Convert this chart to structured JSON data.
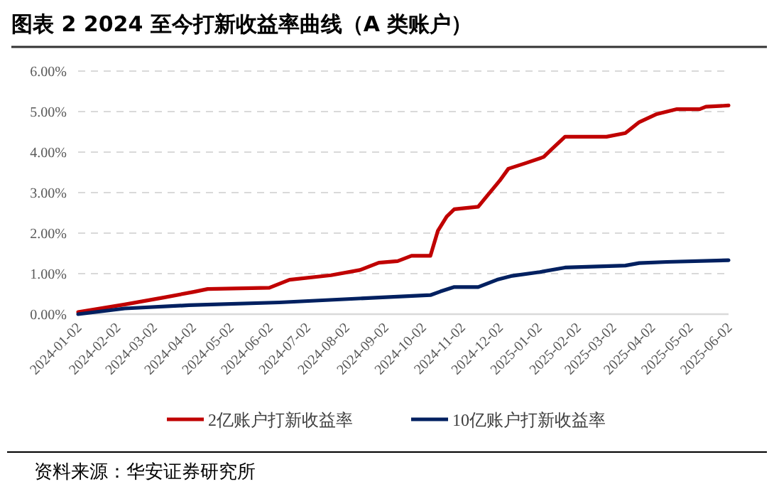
{
  "chart_data": {
    "type": "line",
    "title": "图表 2 2024 至今打新收益率曲线（A 类账户）",
    "annotations": [
      "资料来源：华安证券研究所"
    ],
    "xlim": [
      "2024-01-02",
      "2025-06-02"
    ],
    "xticks": [
      "2024-01-02",
      "2024-02-02",
      "2024-03-02",
      "2024-04-02",
      "2024-05-02",
      "2024-06-02",
      "2024-07-02",
      "2024-08-02",
      "2024-09-02",
      "2024-10-02",
      "2024-11-02",
      "2024-12-02",
      "2025-01-02",
      "2025-02-02",
      "2025-03-02",
      "2025-04-02",
      "2025-05-02",
      "2025-06-02"
    ],
    "ylim": [
      0,
      6
    ],
    "yticks": [
      {
        "value": 0,
        "label": "0.00%"
      },
      {
        "value": 1,
        "label": "1.00%"
      },
      {
        "value": 2,
        "label": "2.00%"
      },
      {
        "value": 3,
        "label": "3.00%"
      },
      {
        "value": 4,
        "label": "4.00%"
      },
      {
        "value": 5,
        "label": "5.00%"
      },
      {
        "value": 6,
        "label": "6.00%"
      }
    ],
    "grid": "y",
    "legend": "bottom",
    "line_style": "solid",
    "marker": "none",
    "series": [
      {
        "name": "2亿账户打新收益率",
        "color": "#c00000",
        "x": [
          "2024-01-02",
          "2024-02-08",
          "2024-03-10",
          "2024-04-03",
          "2024-04-14",
          "2024-06-02",
          "2024-06-18",
          "2024-07-21",
          "2024-08-13",
          "2024-08-28",
          "2024-09-12",
          "2024-09-23",
          "2024-10-08",
          "2024-10-14",
          "2024-10-21",
          "2024-10-27",
          "2024-11-15",
          "2024-11-21",
          "2024-12-02",
          "2024-12-09",
          "2024-12-23",
          "2025-01-06",
          "2025-01-12",
          "2025-01-23",
          "2025-02-25",
          "2025-03-12",
          "2025-03-23",
          "2025-04-06",
          "2025-04-22",
          "2025-05-10",
          "2025-05-15",
          "2025-06-02"
        ],
        "values": [
          0.05,
          0.24,
          0.41,
          0.55,
          0.62,
          0.65,
          0.85,
          0.96,
          1.09,
          1.27,
          1.31,
          1.44,
          1.44,
          2.06,
          2.41,
          2.59,
          2.65,
          2.88,
          3.29,
          3.59,
          3.73,
          3.88,
          4.06,
          4.38,
          4.38,
          4.47,
          4.74,
          4.94,
          5.06,
          5.06,
          5.12,
          5.15
        ]
      },
      {
        "name": "10亿账户打新收益率",
        "color": "#002060",
        "x": [
          "2024-01-02",
          "2024-02-08",
          "2024-03-30",
          "2024-06-10",
          "2024-08-28",
          "2024-10-08",
          "2024-10-16",
          "2024-10-27",
          "2024-11-15",
          "2024-11-30",
          "2024-12-11",
          "2025-01-03",
          "2025-01-23",
          "2025-03-12",
          "2025-03-23",
          "2025-04-14",
          "2025-06-02"
        ],
        "values": [
          0.0,
          0.14,
          0.22,
          0.29,
          0.41,
          0.47,
          0.56,
          0.67,
          0.67,
          0.85,
          0.94,
          1.04,
          1.15,
          1.2,
          1.26,
          1.29,
          1.33
        ]
      }
    ]
  }
}
